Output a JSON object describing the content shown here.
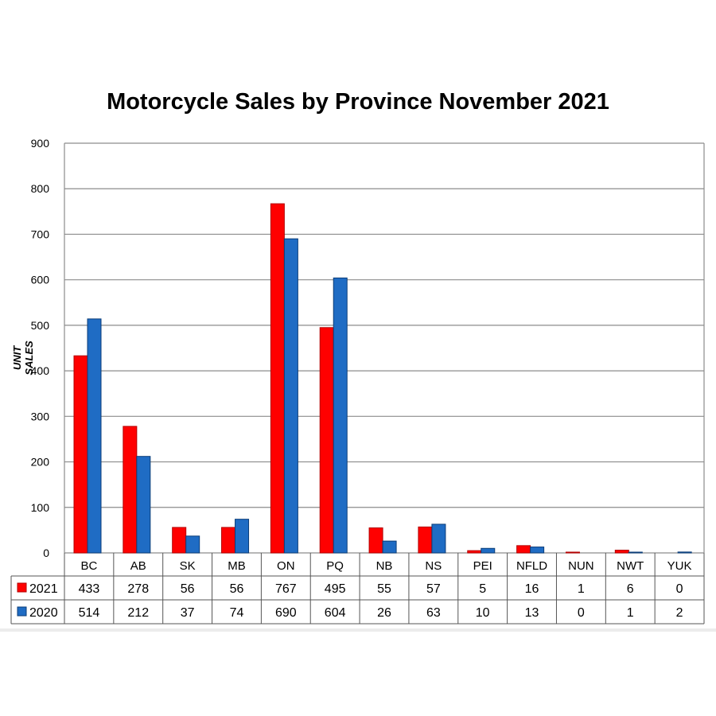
{
  "chart_data": {
    "type": "bar",
    "title": "Motorcycle Sales by Province November 2021",
    "xlabel": "",
    "ylabel": "UNIT SALES",
    "ylim": [
      0,
      900
    ],
    "yticks": [
      0,
      100,
      200,
      300,
      400,
      500,
      600,
      700,
      800,
      900
    ],
    "grid": true,
    "legend": "data-table",
    "categories": [
      "BC",
      "AB",
      "SK",
      "MB",
      "ON",
      "PQ",
      "NB",
      "NS",
      "PEI",
      "NFLD",
      "NUN",
      "NWT",
      "YUK"
    ],
    "series": [
      {
        "name": "2021",
        "color": "#ff0000",
        "values": [
          433,
          278,
          56,
          56,
          767,
          495,
          55,
          57,
          5,
          16,
          1,
          6,
          0
        ]
      },
      {
        "name": "2020",
        "color": "#1f6cc4",
        "values": [
          514,
          212,
          37,
          74,
          690,
          604,
          26,
          63,
          10,
          13,
          0,
          1,
          2
        ]
      }
    ]
  }
}
